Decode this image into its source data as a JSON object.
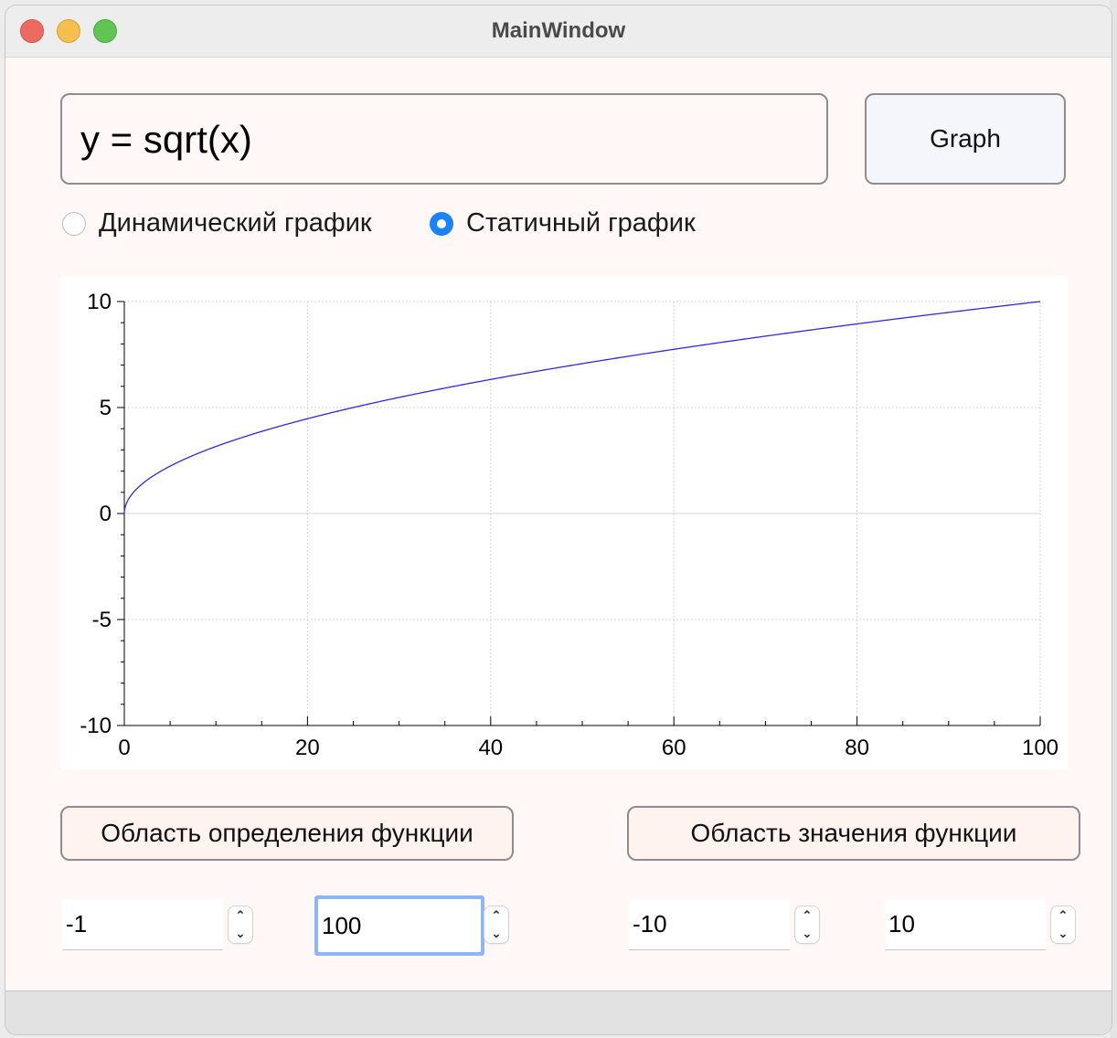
{
  "window": {
    "title": "MainWindow"
  },
  "expression": {
    "value": "y = sqrt(x)"
  },
  "graph_button": {
    "label": "Graph"
  },
  "mode": {
    "dynamic_label": "Динамический график",
    "static_label": "Статичный график",
    "selected": "static"
  },
  "chart_data": {
    "type": "line",
    "function": "sqrt(x)",
    "xlim": [
      0,
      100
    ],
    "ylim": [
      -10,
      10
    ],
    "x_ticks": [
      "0",
      "20",
      "40",
      "60",
      "80",
      "100"
    ],
    "y_ticks": [
      "10",
      "5",
      "0",
      "-5",
      "-10"
    ],
    "grid": true,
    "series": [
      {
        "color": "#2a2ae8",
        "x": [
          0,
          1,
          4,
          9,
          16,
          25,
          36,
          49,
          64,
          81,
          100
        ],
        "y": [
          0,
          1,
          2,
          3,
          4,
          5,
          6,
          7,
          8,
          9,
          10
        ]
      }
    ]
  },
  "domain_button": {
    "label": "Область определения функции"
  },
  "range_button": {
    "label": "Область значения функции"
  },
  "domain_min": {
    "value": "-1"
  },
  "domain_max": {
    "value": "100"
  },
  "range_min": {
    "value": "-10"
  },
  "range_max": {
    "value": "10"
  },
  "colors": {
    "accent": "#1a82fb",
    "curve": "#2a2ae8",
    "focus": "#8fb6f3"
  }
}
